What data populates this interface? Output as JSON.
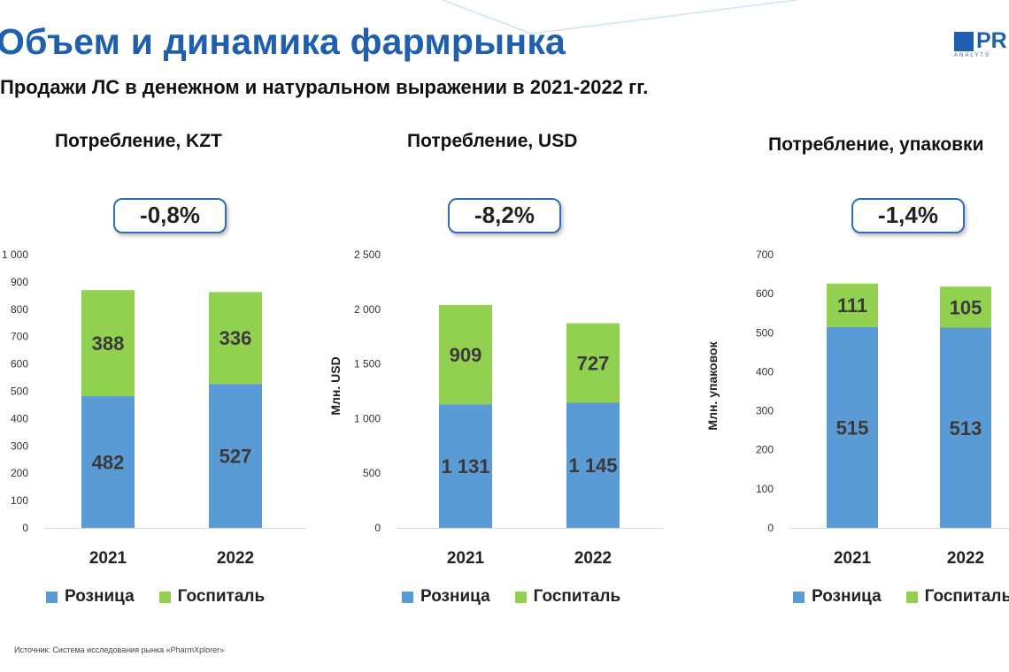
{
  "header": {
    "title": "Объем и динамика фармрынка",
    "subtitle": "Продажи ЛС в денежном и натуральном выражении в 2021-2022 гг.",
    "logo_text": "PR",
    "logo_sub": "ANALYTS"
  },
  "legend": {
    "retail": "Розница",
    "hospital": "Госпиталь"
  },
  "colors": {
    "title": "#1f5fad",
    "retail": "#5b9bd5",
    "hospital": "#92d050",
    "badge_border": "#2e6fb8"
  },
  "source": "Источник: Система исследования рынка «PharmXplorer»",
  "charts": [
    {
      "title": "Потребление, KZT",
      "change": "-0,8%",
      "ylabel": "",
      "tick_labels": [
        "0",
        "100",
        "200",
        "300",
        "400",
        "500",
        "600",
        "700",
        "800",
        "900",
        "1 000"
      ]
    },
    {
      "title": "Потребление, USD",
      "change": "-8,2%",
      "ylabel": "Млн. USD",
      "tick_labels": [
        "0",
        "500",
        "1 000",
        "1 500",
        "2 000",
        "2 500"
      ]
    },
    {
      "title": "Потребление, упаковки",
      "change": "-1,4%",
      "ylabel": "Млн. упаковок",
      "tick_labels": [
        "0",
        "100",
        "200",
        "300",
        "400",
        "500",
        "600",
        "700"
      ]
    }
  ],
  "chart_data": [
    {
      "type": "bar",
      "stacked": true,
      "title": "Потребление, KZT",
      "categories": [
        "2021",
        "2022"
      ],
      "series": [
        {
          "name": "Розница",
          "values": [
            482,
            527
          ],
          "labels": [
            "482",
            "527"
          ]
        },
        {
          "name": "Госпиталь",
          "values": [
            388,
            336
          ],
          "labels": [
            "388",
            "336"
          ]
        }
      ],
      "ylabel": "",
      "ylim": [
        0,
        1000
      ],
      "yticks": [
        0,
        100,
        200,
        300,
        400,
        500,
        600,
        700,
        800,
        900,
        1000
      ],
      "legend": "bottom",
      "grid": false
    },
    {
      "type": "bar",
      "stacked": true,
      "title": "Потребление, USD",
      "categories": [
        "2021",
        "2022"
      ],
      "series": [
        {
          "name": "Розница",
          "values": [
            1131,
            1145
          ],
          "labels": [
            "1 131",
            "1 145"
          ]
        },
        {
          "name": "Госпиталь",
          "values": [
            909,
            727
          ],
          "labels": [
            "909",
            "727"
          ]
        }
      ],
      "ylabel": "Млн. USD",
      "ylim": [
        0,
        2500
      ],
      "yticks": [
        0,
        500,
        1000,
        1500,
        2000,
        2500
      ],
      "legend": "bottom",
      "grid": false
    },
    {
      "type": "bar",
      "stacked": true,
      "title": "Потребление, упаковки",
      "categories": [
        "2021",
        "2022"
      ],
      "series": [
        {
          "name": "Розница",
          "values": [
            515,
            513
          ],
          "labels": [
            "515",
            "513"
          ]
        },
        {
          "name": "Госпиталь",
          "values": [
            111,
            105
          ],
          "labels": [
            "111",
            "105"
          ]
        }
      ],
      "ylabel": "Млн. упаковок",
      "ylim": [
        0,
        700
      ],
      "yticks": [
        0,
        100,
        200,
        300,
        400,
        500,
        600,
        700
      ],
      "legend": "bottom",
      "grid": false
    }
  ]
}
